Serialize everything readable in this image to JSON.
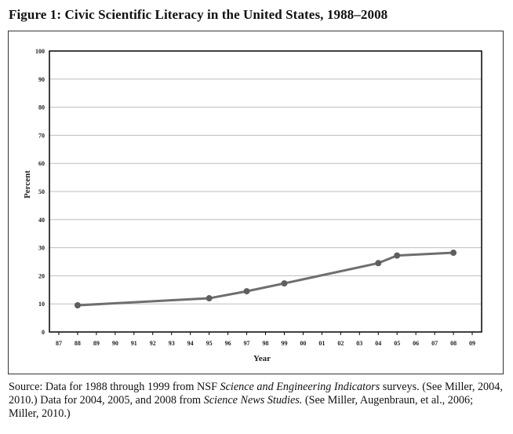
{
  "figure": {
    "title": "Figure 1: Civic Scientific Literacy in the United States, 1988–2008"
  },
  "chart_data": {
    "type": "line",
    "title": "Figure 1: Civic Scientific Literacy in the United States, 1988–2008",
    "xlabel": "Year",
    "ylabel": "Percent",
    "x_tick_labels": [
      "87",
      "88",
      "89",
      "90",
      "91",
      "92",
      "93",
      "94",
      "95",
      "96",
      "97",
      "98",
      "99",
      "00",
      "01",
      "02",
      "03",
      "04",
      "05",
      "06",
      "07",
      "08",
      "09"
    ],
    "y_tick_labels": [
      "0",
      "10",
      "20",
      "30",
      "40",
      "50",
      "60",
      "70",
      "80",
      "90",
      "100"
    ],
    "ylim": [
      0,
      100
    ],
    "grid": true,
    "series": [
      {
        "points": [
          {
            "x": "88",
            "y": 9.5
          },
          {
            "x": "95",
            "y": 12
          },
          {
            "x": "97",
            "y": 14.5
          },
          {
            "x": "99",
            "y": 17.3
          },
          {
            "x": "04",
            "y": 24.5
          },
          {
            "x": "05",
            "y": 27.2
          },
          {
            "x": "08",
            "y": 28.2
          }
        ]
      }
    ],
    "colors": {
      "line": "#6e6e6e",
      "marker": "#5e5e5e",
      "grid": "#bdbdbd",
      "axis": "#000000"
    }
  },
  "source": {
    "prefix": "Source: Data for 1988 through 1999 from NSF ",
    "italic1": "Science and Engineering Indicators",
    "mid": " surveys. (See Miller, 2004, 2010.) Data for 2004, 2005, and 2008 from ",
    "italic2": "Science News Studies.",
    "suffix": " (See Miller, Augenbraun, et al., 2006; Miller, 2010.)"
  }
}
